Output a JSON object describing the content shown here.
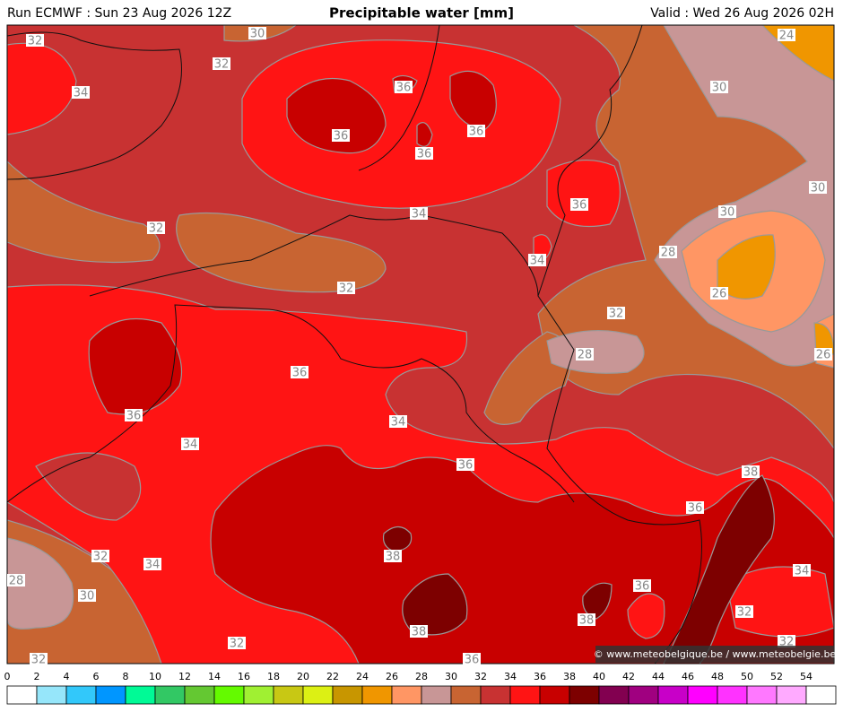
{
  "header": {
    "run": "Run ECMWF : Sun 23 Aug 2026 12Z",
    "title": "Precipitable water [mm]",
    "valid": "Valid : Wed 26 Aug 2026 02H"
  },
  "map": {
    "contour_labels": [
      32,
      30,
      24,
      32,
      34,
      36,
      30,
      36,
      36,
      36,
      30,
      36,
      34,
      30,
      32,
      28,
      34,
      32,
      26,
      32,
      28,
      26,
      36,
      36,
      34,
      34,
      36,
      38,
      36,
      38,
      32,
      34,
      34,
      28,
      36,
      30,
      38,
      32,
      38,
      32,
      32,
      32,
      36
    ],
    "credit": "© www.meteobelgique.be / www.meteobelgie.be"
  },
  "colorbar": {
    "ticks": [
      0,
      2,
      4,
      6,
      8,
      10,
      12,
      14,
      16,
      18,
      20,
      22,
      24,
      26,
      28,
      30,
      32,
      34,
      36,
      38,
      40,
      42,
      44,
      46,
      48,
      50,
      52,
      54
    ],
    "colors": [
      "#ffffff",
      "#96e6fa",
      "#32c8fa",
      "#0096ff",
      "#00fa96",
      "#32c864",
      "#64c832",
      "#64fa00",
      "#a0f032",
      "#c8c814",
      "#dcf014",
      "#c89600",
      "#f09600",
      "#ff9664",
      "#c89696",
      "#c86432",
      "#c83232",
      "#ff1414",
      "#c80000",
      "#7d0000",
      "#820050",
      "#a00080",
      "#c800c8",
      "#ff00ff",
      "#ff32ff",
      "#ff78ff",
      "#ffaaff",
      "#ffffff"
    ]
  }
}
